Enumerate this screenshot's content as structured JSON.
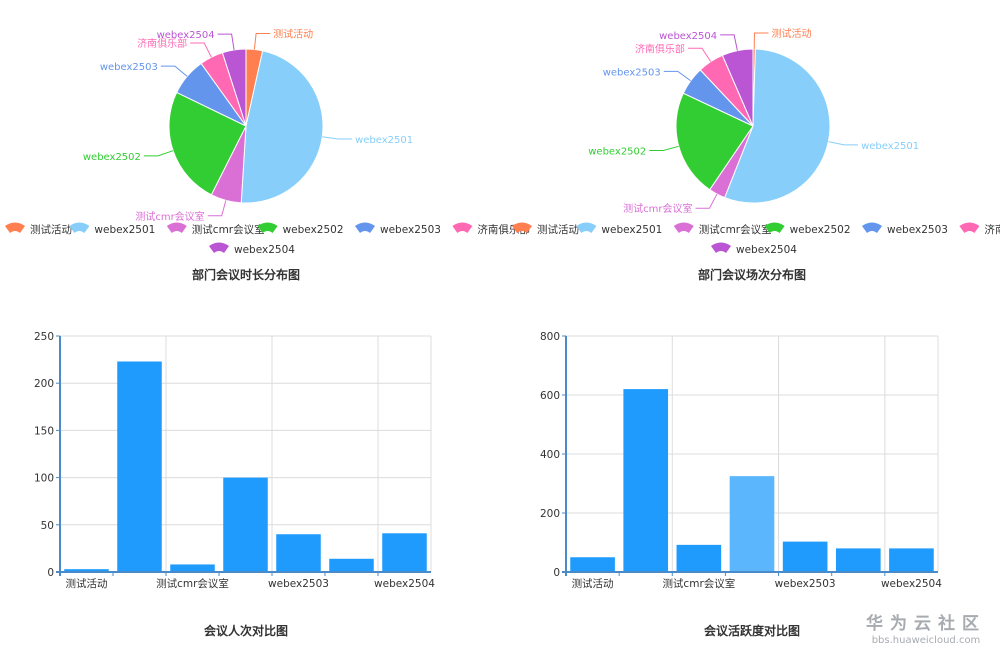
{
  "colors": {
    "axis": "#4a8ac9",
    "grid": "#dcdcdc",
    "bar": "#1e9bfd",
    "bar_highlight": "#5bb6fd",
    "text": "#333333",
    "label_text": "#555555"
  },
  "chart_data": [
    {
      "type": "pie",
      "title": "部门会议时长分布图",
      "series": [
        {
          "name": "测试活动",
          "value": 3.5,
          "color": "#ff7f50"
        },
        {
          "name": "webex2501",
          "value": 48,
          "color": "#87cefa"
        },
        {
          "name": "测试cmr会议室",
          "value": 6.5,
          "color": "#da70d6"
        },
        {
          "name": "webex2502",
          "value": 25,
          "color": "#32cd32"
        },
        {
          "name": "webex2503",
          "value": 8,
          "color": "#6495ed"
        },
        {
          "name": "济南俱乐部",
          "value": 5,
          "color": "#ff69b4"
        },
        {
          "name": "webex2504",
          "value": 5,
          "color": "#ba55d3"
        }
      ]
    },
    {
      "type": "pie",
      "title": "部门会议场次分布图",
      "series": [
        {
          "name": "测试活动",
          "value": 0.5,
          "color": "#ff7f50"
        },
        {
          "name": "webex2501",
          "value": 55.5,
          "color": "#87cefa"
        },
        {
          "name": "测试cmr会议室",
          "value": 3.5,
          "color": "#da70d6"
        },
        {
          "name": "webex2502",
          "value": 22.5,
          "color": "#32cd32"
        },
        {
          "name": "webex2503",
          "value": 6,
          "color": "#6495ed"
        },
        {
          "name": "济南俱乐部",
          "value": 5.5,
          "color": "#ff69b4"
        },
        {
          "name": "webex2504",
          "value": 6.5,
          "color": "#ba55d3"
        }
      ]
    },
    {
      "type": "bar",
      "title": "会议人次对比图",
      "categories": [
        "测试活动",
        "webex2501",
        "测试cmr会议室",
        "webex2502",
        "webex2503",
        "济南俱乐部",
        "webex2504"
      ],
      "tick_labels_shown": [
        "测试活动",
        "",
        "测试cmr会议室",
        "",
        "webex2503",
        "",
        "webex2504"
      ],
      "values": [
        3,
        223,
        8,
        100,
        40,
        14,
        41
      ],
      "ylim": [
        0,
        250
      ],
      "yticks": [
        0,
        50,
        100,
        150,
        200,
        250
      ],
      "grid": true
    },
    {
      "type": "bar",
      "title": "会议活跃度对比图",
      "categories": [
        "测试活动",
        "webex2501",
        "测试cmr会议室",
        "webex2502",
        "webex2503",
        "济南俱乐部",
        "webex2504"
      ],
      "tick_labels_shown": [
        "测试活动",
        "",
        "测试cmr会议室",
        "",
        "webex2503",
        "",
        "webex2504"
      ],
      "values": [
        50,
        620,
        92,
        325,
        103,
        80,
        80
      ],
      "highlight_index": 3,
      "ylim": [
        0,
        800
      ],
      "yticks": [
        0,
        200,
        400,
        600,
        800
      ],
      "grid": true
    }
  ],
  "watermark": {
    "title": "华为云社区",
    "url": "bbs.huaweicloud.com"
  }
}
